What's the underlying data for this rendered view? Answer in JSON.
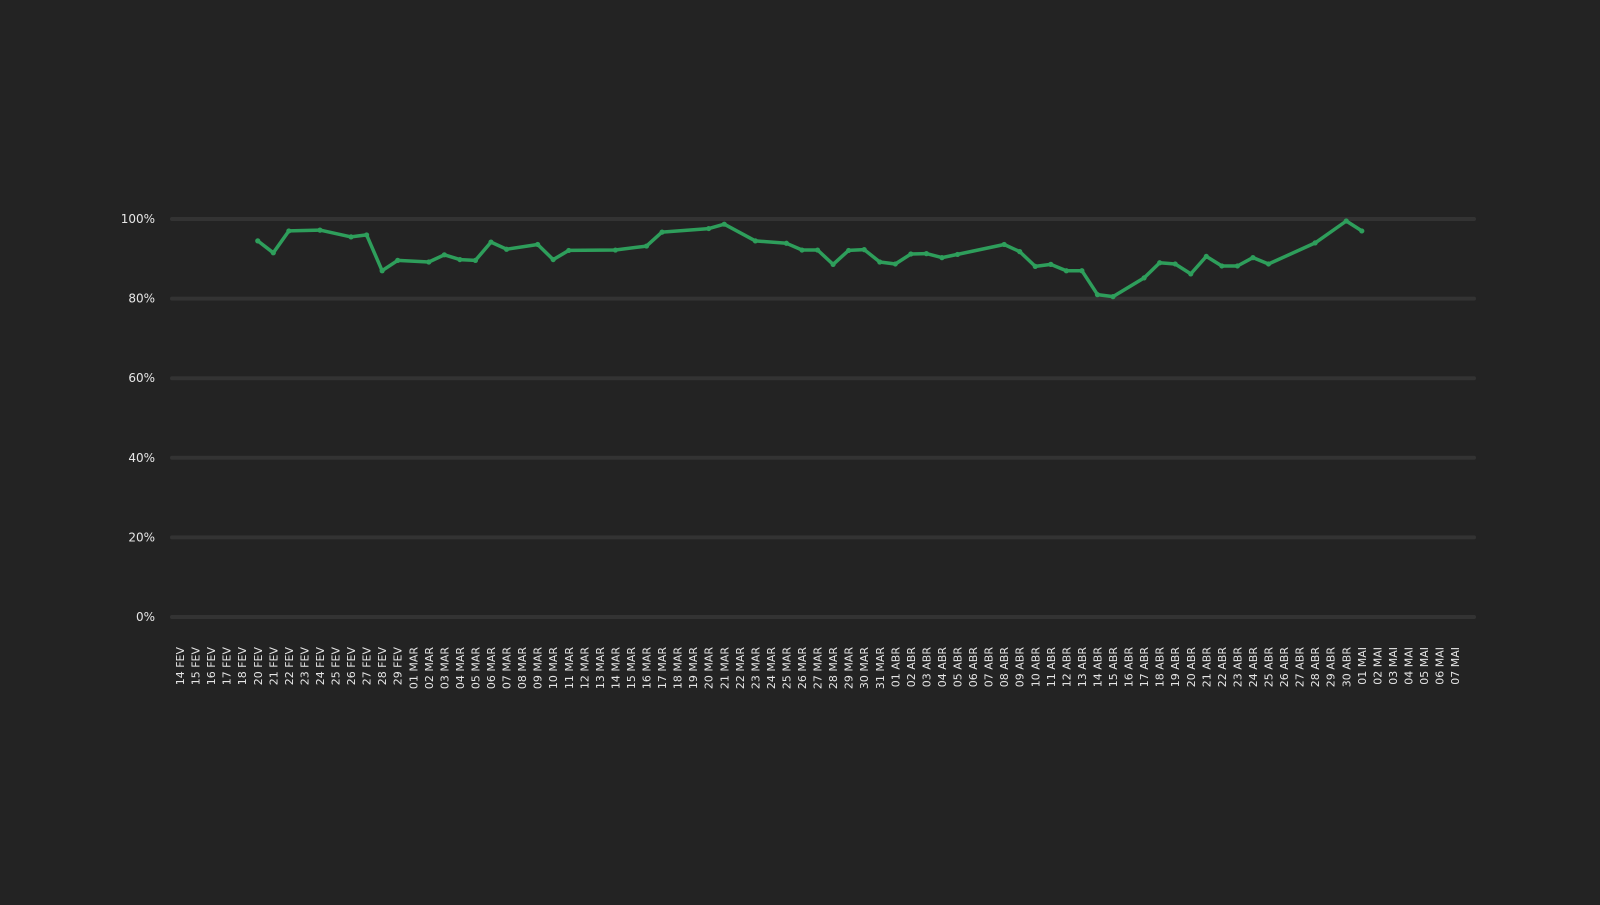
{
  "colors": {
    "background": "#232323",
    "grid": "#333333",
    "line": "#2e9e5b",
    "text": "#e6e6e6"
  },
  "chart_data": {
    "type": "line",
    "title": "",
    "xlabel": "",
    "ylabel": "",
    "ylim": [
      0,
      100
    ],
    "grid": true,
    "y_ticks": [
      0,
      20,
      40,
      60,
      80,
      100
    ],
    "y_tick_labels": [
      "0%",
      "20%",
      "40%",
      "60%",
      "80%",
      "100%"
    ],
    "categories": [
      "14 FEV",
      "15 FEV",
      "16 FEV",
      "17 FEV",
      "18 FEV",
      "20 FEV",
      "21 FEV",
      "22 FEV",
      "23 FEV",
      "24 FEV",
      "25 FEV",
      "26 FEV",
      "27 FEV",
      "28 FEV",
      "29 FEV",
      "01 MAR",
      "02 MAR",
      "03 MAR",
      "04 MAR",
      "05 MAR",
      "06 MAR",
      "07 MAR",
      "08 MAR",
      "09 MAR",
      "10 MAR",
      "11 MAR",
      "12 MAR",
      "13 MAR",
      "14 MAR",
      "15 MAR",
      "16 MAR",
      "17 MAR",
      "18 MAR",
      "19 MAR",
      "20 MAR",
      "21 MAR",
      "22 MAR",
      "23 MAR",
      "24 MAR",
      "25 MAR",
      "26 MAR",
      "27 MAR",
      "28 MAR",
      "29 MAR",
      "30 MAR",
      "31 MAR",
      "01 ABR",
      "02 ABR",
      "03 ABR",
      "04 ABR",
      "05 ABR",
      "06 ABR",
      "07 ABR",
      "08 ABR",
      "09 ABR",
      "10 ABR",
      "11 ABR",
      "12 ABR",
      "13 ABR",
      "14 ABR",
      "15 ABR",
      "16 ABR",
      "17 ABR",
      "18 ABR",
      "19 ABR",
      "20 ABR",
      "21 ABR",
      "22 ABR",
      "23 ABR",
      "24 ABR",
      "25 ABR",
      "26 ABR",
      "27 ABR",
      "28 ABR",
      "29 ABR",
      "30 ABR",
      "01 MAI",
      "02 MAI",
      "03 MAI",
      "04 MAI",
      "05 MAI",
      "06 MAI",
      "07 MAI"
    ],
    "series": [
      {
        "points": [
          [
            "20 FEV",
            94.5
          ],
          [
            "21 FEV",
            91.5
          ],
          [
            "22 FEV",
            97.0
          ],
          [
            "24 FEV",
            97.2
          ],
          [
            "26 FEV",
            95.5
          ],
          [
            "27 FEV",
            96.0
          ],
          [
            "28 FEV",
            87.0
          ],
          [
            "29 FEV",
            89.6
          ],
          [
            "02 MAR",
            89.2
          ],
          [
            "03 MAR",
            91.0
          ],
          [
            "04 MAR",
            89.8
          ],
          [
            "05 MAR",
            89.6
          ],
          [
            "06 MAR",
            94.2
          ],
          [
            "07 MAR",
            92.4
          ],
          [
            "09 MAR",
            93.6
          ],
          [
            "10 MAR",
            89.8
          ],
          [
            "11 MAR",
            92.1
          ],
          [
            "14 MAR",
            92.2
          ],
          [
            "16 MAR",
            93.2
          ],
          [
            "17 MAR",
            96.7
          ],
          [
            "20 MAR",
            97.6
          ],
          [
            "21 MAR",
            98.7
          ],
          [
            "23 MAR",
            94.5
          ],
          [
            "25 MAR",
            93.9
          ],
          [
            "26 MAR",
            92.2
          ],
          [
            "27 MAR",
            92.2
          ],
          [
            "28 MAR",
            88.6
          ],
          [
            "29 MAR",
            92.1
          ],
          [
            "30 MAR",
            92.3
          ],
          [
            "31 MAR",
            89.2
          ],
          [
            "01 ABR",
            88.7
          ],
          [
            "02 ABR",
            91.2
          ],
          [
            "03 ABR",
            91.3
          ],
          [
            "04 ABR",
            90.3
          ],
          [
            "05 ABR",
            91.1
          ],
          [
            "08 ABR",
            93.6
          ],
          [
            "09 ABR",
            91.8
          ],
          [
            "10 ABR",
            88.1
          ],
          [
            "11 ABR",
            88.6
          ],
          [
            "12 ABR",
            87.0
          ],
          [
            "13 ABR",
            87.0
          ],
          [
            "14 ABR",
            81.0
          ],
          [
            "15 ABR",
            80.5
          ],
          [
            "17 ABR",
            85.2
          ],
          [
            "18 ABR",
            89.0
          ],
          [
            "19 ABR",
            88.7
          ],
          [
            "20 ABR",
            86.2
          ],
          [
            "21 ABR",
            90.6
          ],
          [
            "22 ABR",
            88.2
          ],
          [
            "23 ABR",
            88.2
          ],
          [
            "24 ABR",
            90.3
          ],
          [
            "25 ABR",
            88.7
          ],
          [
            "28 ABR",
            94.0
          ],
          [
            "30 ABR",
            99.5
          ],
          [
            "01 MAI",
            97.0
          ]
        ]
      }
    ]
  }
}
